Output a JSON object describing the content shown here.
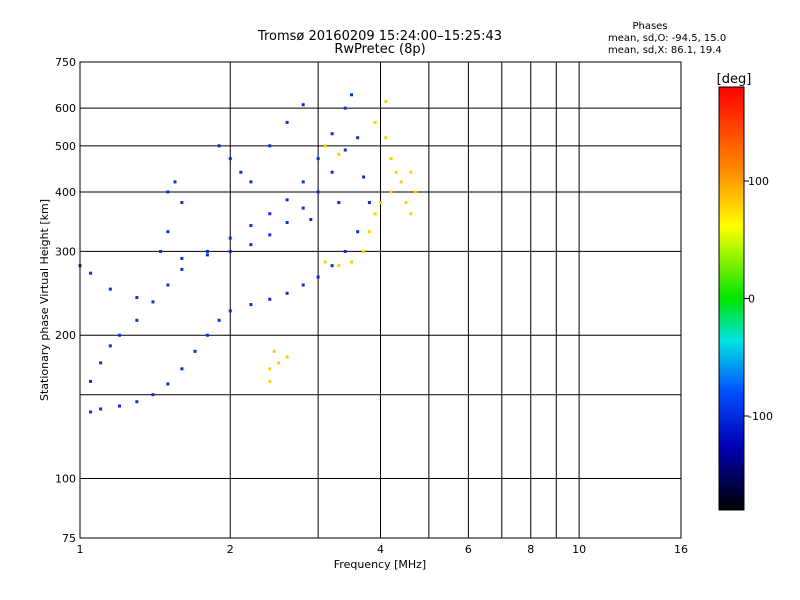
{
  "chart_data": {
    "type": "scatter",
    "title": "Tromsø 20160209 15:24:00–15:25:43",
    "subtitle": "RwPretec (8p)",
    "xlabel": "Frequency [MHz]",
    "ylabel": "Stationary phase Virtual Height [km]",
    "x_scale": "log",
    "y_scale": "log",
    "xlim": [
      1,
      16
    ],
    "ylim": [
      75,
      750
    ],
    "x_ticks": [
      1,
      2,
      4,
      6,
      8,
      10,
      16
    ],
    "x_minor_grid": [
      3,
      5,
      7,
      9
    ],
    "y_ticks": [
      75,
      100,
      200,
      300,
      400,
      500,
      600,
      750
    ],
    "y_minor_grid": [
      150
    ],
    "grid": true,
    "legend": {
      "title": "Phases",
      "lines": [
        "mean, sd,O: -94.5, 15.0",
        "mean, sd,X:  86.1, 19.4"
      ],
      "placement": "top-right"
    },
    "colorbar": {
      "label": "[deg]",
      "ticks": [
        100,
        0,
        -100
      ],
      "range": [
        -180,
        180
      ],
      "colors_top_to_bottom": [
        "#ff0000",
        "#ff8c00",
        "#ffff00",
        "#00e400",
        "#00e4e4",
        "#0050ff",
        "#0000b4",
        "#000000"
      ],
      "placement": "right"
    },
    "series": [
      {
        "mode": "O",
        "phase": -100,
        "color": "#0a2fd8",
        "points": [
          [
            1.05,
            138
          ],
          [
            1.1,
            140
          ],
          [
            1.2,
            142
          ],
          [
            1.3,
            145
          ],
          [
            1.4,
            150
          ],
          [
            1.5,
            158
          ],
          [
            1.6,
            170
          ],
          [
            1.7,
            185
          ],
          [
            1.8,
            200
          ],
          [
            1.9,
            215
          ],
          [
            2.0,
            225
          ],
          [
            2.2,
            232
          ],
          [
            2.4,
            238
          ],
          [
            2.6,
            245
          ],
          [
            2.8,
            255
          ],
          [
            3.0,
            265
          ],
          [
            3.2,
            280
          ],
          [
            3.4,
            300
          ],
          [
            3.6,
            330
          ],
          [
            3.8,
            380
          ],
          [
            1.05,
            160
          ],
          [
            1.1,
            175
          ],
          [
            1.15,
            190
          ],
          [
            1.2,
            200
          ],
          [
            1.3,
            215
          ],
          [
            1.4,
            235
          ],
          [
            1.5,
            255
          ],
          [
            1.6,
            275
          ],
          [
            1.8,
            300
          ],
          [
            2.0,
            320
          ],
          [
            2.2,
            340
          ],
          [
            2.4,
            360
          ],
          [
            2.6,
            385
          ],
          [
            2.8,
            420
          ],
          [
            3.0,
            470
          ],
          [
            3.2,
            530
          ],
          [
            3.4,
            600
          ],
          [
            3.5,
            640
          ],
          [
            1.6,
            290
          ],
          [
            1.8,
            295
          ],
          [
            2.0,
            300
          ],
          [
            2.2,
            310
          ],
          [
            2.4,
            325
          ],
          [
            2.6,
            345
          ],
          [
            2.8,
            370
          ],
          [
            3.0,
            400
          ],
          [
            3.2,
            440
          ],
          [
            3.4,
            490
          ],
          [
            1.5,
            400
          ],
          [
            1.6,
            380
          ],
          [
            1.55,
            420
          ],
          [
            1.9,
            500
          ],
          [
            2.0,
            470
          ],
          [
            2.1,
            440
          ],
          [
            2.2,
            420
          ],
          [
            2.4,
            500
          ],
          [
            2.6,
            560
          ],
          [
            2.8,
            610
          ],
          [
            1.0,
            280
          ],
          [
            1.05,
            270
          ],
          [
            1.15,
            250
          ],
          [
            1.3,
            240
          ],
          [
            1.45,
            300
          ],
          [
            1.5,
            330
          ],
          [
            3.6,
            520
          ],
          [
            3.7,
            430
          ],
          [
            3.3,
            380
          ],
          [
            2.9,
            350
          ]
        ]
      },
      {
        "mode": "X",
        "phase": 100,
        "color": "#ffd000",
        "points": [
          [
            3.1,
            285
          ],
          [
            3.3,
            280
          ],
          [
            3.5,
            285
          ],
          [
            3.7,
            300
          ],
          [
            3.8,
            330
          ],
          [
            3.9,
            360
          ],
          [
            4.0,
            380
          ],
          [
            4.2,
            400
          ],
          [
            4.4,
            420
          ],
          [
            4.6,
            440
          ],
          [
            3.9,
            560
          ],
          [
            4.1,
            520
          ],
          [
            4.2,
            470
          ],
          [
            4.3,
            440
          ],
          [
            4.5,
            380
          ],
          [
            4.6,
            360
          ],
          [
            4.7,
            400
          ],
          [
            2.4,
            170
          ],
          [
            2.5,
            175
          ],
          [
            2.45,
            185
          ],
          [
            2.6,
            180
          ],
          [
            2.4,
            160
          ],
          [
            3.3,
            480
          ],
          [
            3.1,
            500
          ],
          [
            4.1,
            620
          ]
        ]
      }
    ]
  }
}
